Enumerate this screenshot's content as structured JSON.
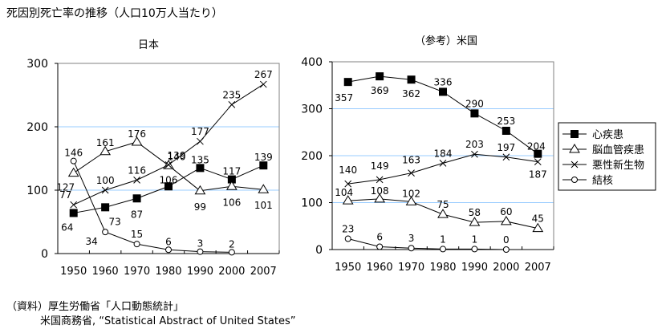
{
  "title": "死因別死亡率の推移（人口10万人当たり）",
  "source": {
    "line1": "（資料）厚生労働省「人口動態統計」",
    "line2": "米国商務省, “Statistical Abstract of United States”"
  },
  "colors": {
    "gridline": "#99ccff",
    "axis": "#808080",
    "series": "#000000"
  },
  "legend": {
    "placement": "right of US chart",
    "entries": [
      {
        "label": "心疾患",
        "marker": "filled-square"
      },
      {
        "label": "脳血管疾患",
        "marker": "open-triangle"
      },
      {
        "label": "悪性新生物",
        "marker": "x-cross"
      },
      {
        "label": "結核",
        "marker": "open-circle"
      }
    ]
  },
  "chart_data": [
    {
      "type": "line",
      "title": "日本",
      "xlabel": "",
      "ylabel": "",
      "categories": [
        "1950",
        "1960",
        "1970",
        "1980",
        "1990",
        "2000",
        "2007"
      ],
      "ylim": [
        0,
        300
      ],
      "yticks": [
        0,
        100,
        200,
        300
      ],
      "grid": "horizontal",
      "series": [
        {
          "name": "心疾患",
          "marker": "filled-square",
          "values": [
            64,
            73,
            87,
            106,
            135,
            117,
            139
          ]
        },
        {
          "name": "脳血管疾患",
          "marker": "open-triangle",
          "values": [
            127,
            161,
            176,
            139,
            99,
            106,
            101
          ]
        },
        {
          "name": "悪性新生物",
          "marker": "x-cross",
          "values": [
            77,
            100,
            116,
            140,
            177,
            235,
            267
          ]
        },
        {
          "name": "結核",
          "marker": "open-circle",
          "values": [
            146,
            34,
            15,
            6,
            3,
            2,
            null
          ]
        }
      ]
    },
    {
      "type": "line",
      "title": "（参考）米国",
      "xlabel": "",
      "ylabel": "",
      "categories": [
        "1950",
        "1960",
        "1970",
        "1980",
        "1990",
        "2000",
        "2007"
      ],
      "ylim": [
        0,
        400
      ],
      "yticks": [
        0,
        100,
        200,
        300,
        400
      ],
      "grid": "horizontal",
      "legend": "right",
      "series": [
        {
          "name": "心疾患",
          "marker": "filled-square",
          "values": [
            357,
            369,
            362,
            336,
            290,
            253,
            204
          ]
        },
        {
          "name": "脳血管疾患",
          "marker": "open-triangle",
          "values": [
            104,
            108,
            102,
            75,
            58,
            60,
            45
          ]
        },
        {
          "name": "悪性新生物",
          "marker": "x-cross",
          "values": [
            140,
            149,
            163,
            184,
            203,
            197,
            187
          ]
        },
        {
          "name": "結核",
          "marker": "open-circle",
          "values": [
            23,
            6,
            3,
            1,
            1,
            0,
            null
          ]
        }
      ]
    }
  ]
}
